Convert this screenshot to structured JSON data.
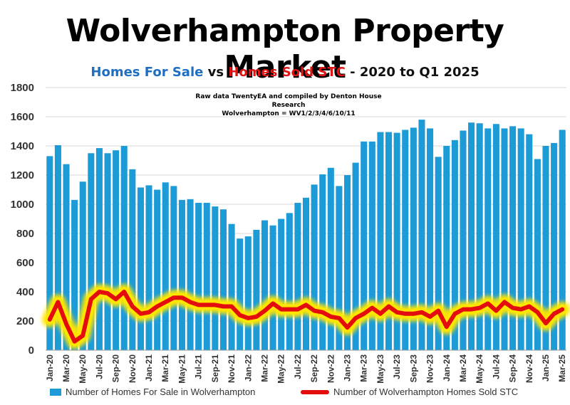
{
  "header": {
    "title": "Wolverhampton Property Market",
    "subtitle_part1": "Homes For Sale",
    "subtitle_vs": " vs ",
    "subtitle_part2": "Homes Sold STC",
    "subtitle_part3": " - 2020 to Q1 2025",
    "note_line1": "Raw data TwentyEA and compiled by Denton House Research",
    "note_line2": "Wolverhampton  = WV1/2/3/4/6/10/11"
  },
  "legend": {
    "bars_label": "Number of Homes For Sale in Wolverhampton",
    "line_label": "Number of Wolverhampton Homes Sold STC"
  },
  "colors": {
    "bars": "#1d9bd7",
    "line": "#e30d0d",
    "glow": "#ffe600",
    "subtitle_blue": "#1f6fc1",
    "subtitle_red": "#e01414"
  },
  "chart_data": {
    "type": "bar",
    "ylim": [
      0,
      1800
    ],
    "yticks": [
      0,
      200,
      400,
      600,
      800,
      1000,
      1200,
      1400,
      1600,
      1800
    ],
    "categories": [
      "Jan-20",
      "Feb-20",
      "Mar-20",
      "Apr-20",
      "May-20",
      "Jun-20",
      "Jul-20",
      "Aug-20",
      "Sep-20",
      "Oct-20",
      "Nov-20",
      "Dec-20",
      "Jan-21",
      "Feb-21",
      "Mar-21",
      "Apr-21",
      "May-21",
      "Jun-21",
      "Jul-21",
      "Aug-21",
      "Sep-21",
      "Oct-21",
      "Nov-21",
      "Dec-21",
      "Jan-22",
      "Feb-22",
      "Mar-22",
      "Apr-22",
      "May-22",
      "Jun-22",
      "Jul-22",
      "Aug-22",
      "Sep-22",
      "Oct-22",
      "Nov-22",
      "Dec-22",
      "Jan-23",
      "Feb-23",
      "Mar-23",
      "Apr-23",
      "May-23",
      "Jun-23",
      "Jul-23",
      "Aug-23",
      "Sep-23",
      "Oct-23",
      "Nov-23",
      "Dec-23",
      "Jan-24",
      "Feb-24",
      "Mar-24",
      "Apr-24",
      "May-24",
      "Jun-24",
      "Jul-24",
      "Aug-24",
      "Sep-24",
      "Oct-24",
      "Nov-24",
      "Dec-24",
      "Jan-25",
      "Feb-25",
      "Mar-25"
    ],
    "xtick_labels": [
      "Jan-20",
      "Mar-20",
      "May-20",
      "Jul-20",
      "Sep-20",
      "Nov-20",
      "Jan-21",
      "Mar-21",
      "May-21",
      "Jul-21",
      "Sep-21",
      "Nov-21",
      "Jan-22",
      "Mar-22",
      "May-22",
      "Jul-22",
      "Sep-22",
      "Nov-22",
      "Jan-23",
      "Mar-23",
      "May-23",
      "Jul-23",
      "Sep-23",
      "Nov-23",
      "Jan-24",
      "Mar-24",
      "May-24",
      "Jul-24",
      "Sep-24",
      "Nov-24",
      "Jan-25",
      "Mar-25"
    ],
    "series": [
      {
        "name": "Number of Homes For Sale in Wolverhampton",
        "type": "bar",
        "values": [
          1330,
          1405,
          1275,
          1030,
          1155,
          1350,
          1385,
          1350,
          1370,
          1400,
          1240,
          1115,
          1130,
          1100,
          1150,
          1125,
          1030,
          1035,
          1010,
          1010,
          985,
          965,
          865,
          765,
          780,
          825,
          890,
          855,
          900,
          940,
          1010,
          1045,
          1135,
          1205,
          1250,
          1125,
          1200,
          1285,
          1430,
          1430,
          1495,
          1495,
          1490,
          1510,
          1525,
          1580,
          1520,
          1325,
          1400,
          1440,
          1505,
          1560,
          1555,
          1520,
          1550,
          1520,
          1535,
          1520,
          1480,
          1310,
          1400,
          1420,
          1510
        ]
      },
      {
        "name": "Number of Wolverhampton Homes Sold STC",
        "type": "line",
        "values": [
          210,
          330,
          180,
          60,
          100,
          350,
          400,
          390,
          350,
          400,
          300,
          250,
          260,
          300,
          330,
          360,
          360,
          330,
          310,
          310,
          310,
          300,
          300,
          240,
          220,
          230,
          270,
          320,
          280,
          280,
          280,
          310,
          270,
          260,
          230,
          220,
          155,
          220,
          250,
          290,
          250,
          300,
          260,
          250,
          250,
          260,
          230,
          270,
          160,
          250,
          280,
          280,
          290,
          320,
          270,
          330,
          290,
          280,
          300,
          260,
          185,
          250,
          280
        ]
      }
    ]
  }
}
